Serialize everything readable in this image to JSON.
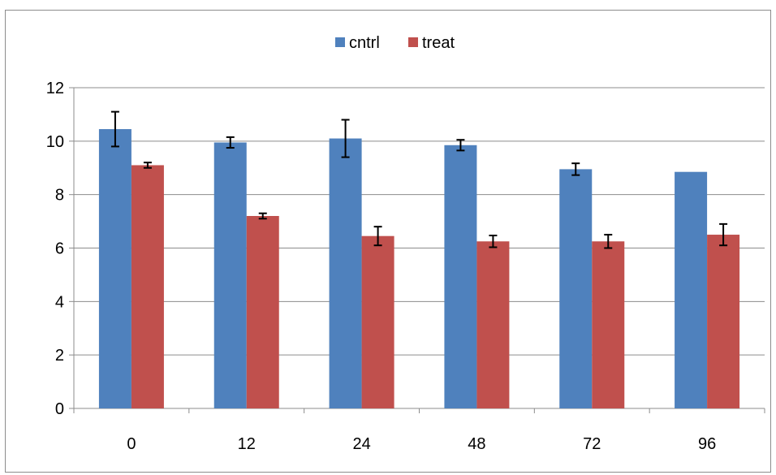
{
  "chart_data": {
    "type": "bar",
    "categories": [
      "0",
      "12",
      "24",
      "48",
      "72",
      "96"
    ],
    "series": [
      {
        "name": "cntrl",
        "color": "#4f81bd",
        "values": [
          10.45,
          9.95,
          10.1,
          9.85,
          8.95,
          8.85
        ],
        "errors": [
          0.65,
          0.2,
          0.7,
          0.2,
          0.22,
          null
        ]
      },
      {
        "name": "treat",
        "color": "#c0504d",
        "values": [
          9.1,
          7.2,
          6.45,
          6.25,
          6.25,
          6.5
        ],
        "errors": [
          0.1,
          0.1,
          0.35,
          0.22,
          0.25,
          0.4
        ]
      }
    ],
    "ylim": [
      0,
      12
    ],
    "yticks": [
      0,
      2,
      4,
      6,
      8,
      10,
      12
    ],
    "grid": true,
    "legend_position": "top-center",
    "title": "",
    "xlabel": "",
    "ylabel": ""
  }
}
